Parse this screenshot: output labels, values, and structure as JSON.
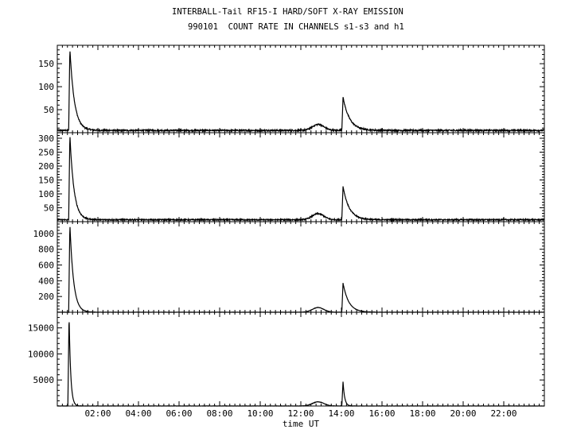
{
  "title": "INTERBALL-Tail RF15-I HARD/SOFT X-RAY EMISSION",
  "subtitle": "990101  COUNT RATE IN CHANNELS s1-s3 and h1",
  "chart_data": [
    {
      "type": "line",
      "panel": "s1",
      "xlabel": "time UT",
      "xlim": [
        0,
        24
      ],
      "ylim": [
        0,
        190
      ],
      "yticks": [
        50,
        100,
        150
      ],
      "ytick_labels": [
        "50",
        "100",
        "150"
      ],
      "background": 5,
      "peaks": [
        {
          "t": 0.62,
          "value": 178,
          "decay_h": 0.22
        },
        {
          "t": 14.08,
          "value": 72,
          "decay_h": 0.32
        }
      ],
      "bumps": [
        {
          "t": 12.85,
          "value": 13,
          "width_h": 0.4
        }
      ]
    },
    {
      "type": "line",
      "panel": "s2",
      "xlim": [
        0,
        24
      ],
      "ylim": [
        0,
        320
      ],
      "yticks": [
        50,
        100,
        150,
        200,
        250,
        300
      ],
      "ytick_labels": [
        "50",
        "100",
        "150",
        "200",
        "250",
        "300"
      ],
      "background": 7,
      "peaks": [
        {
          "t": 0.62,
          "value": 305,
          "decay_h": 0.2
        },
        {
          "t": 14.08,
          "value": 120,
          "decay_h": 0.3
        }
      ],
      "bumps": [
        {
          "t": 12.85,
          "value": 22,
          "width_h": 0.4
        }
      ]
    },
    {
      "type": "line",
      "panel": "s3",
      "xlim": [
        0,
        24
      ],
      "ylim": [
        0,
        1150
      ],
      "yticks": [
        200,
        400,
        600,
        800,
        1000
      ],
      "ytick_labels": [
        "200",
        "400",
        "600",
        "800",
        "1000"
      ],
      "background": 0,
      "peaks": [
        {
          "t": 0.62,
          "value": 1120,
          "decay_h": 0.18
        },
        {
          "t": 14.08,
          "value": 370,
          "decay_h": 0.28
        }
      ],
      "bumps": [
        {
          "t": 12.85,
          "value": 60,
          "width_h": 0.4
        }
      ]
    },
    {
      "type": "line",
      "panel": "h1",
      "xlim": [
        0,
        24
      ],
      "ylim": [
        0,
        18000
      ],
      "yticks": [
        5000,
        10000,
        15000
      ],
      "ytick_labels": [
        "5000",
        "10000",
        "15000"
      ],
      "background": 0,
      "peaks": [
        {
          "t": 0.58,
          "value": 17500,
          "decay_h": 0.08
        },
        {
          "t": 14.08,
          "value": 4700,
          "decay_h": 0.08
        }
      ],
      "bumps": [
        {
          "t": 12.85,
          "value": 800,
          "width_h": 0.4
        }
      ]
    }
  ],
  "x_axis": {
    "ticks": [
      2,
      4,
      6,
      8,
      10,
      12,
      14,
      16,
      18,
      20,
      22
    ],
    "tick_labels": [
      "02:00",
      "04:00",
      "06:00",
      "08:00",
      "10:00",
      "12:00",
      "14:00",
      "16:00",
      "18:00",
      "20:00",
      "22:00"
    ],
    "label": "time UT"
  },
  "colors": {
    "line": "#000000",
    "background": "#ffffff"
  }
}
